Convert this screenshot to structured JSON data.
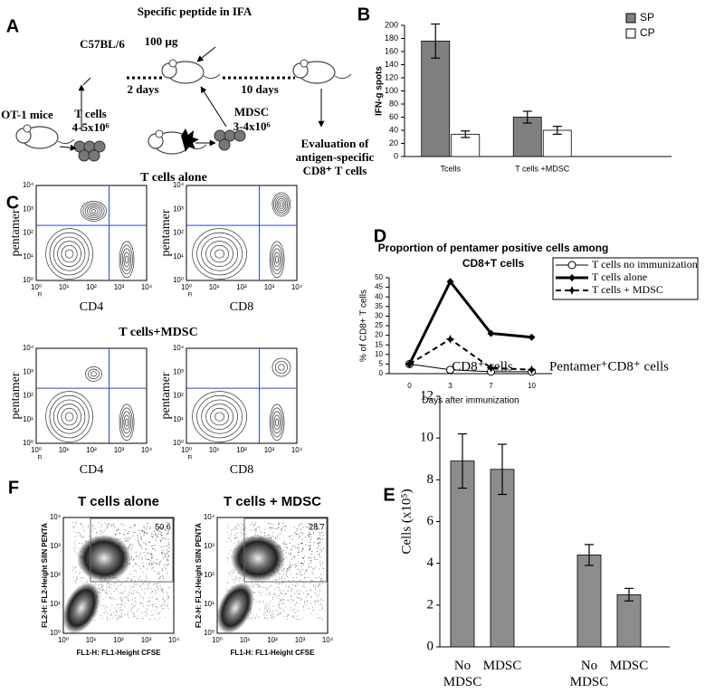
{
  "panel_letters": [
    "A",
    "B",
    "C",
    "D",
    "E",
    "F"
  ],
  "schematic": {
    "peptide": "Specific peptide in IFA",
    "dose": "100 µg",
    "strain": "C57BL/6",
    "interval_1": "2 days",
    "interval_2": "10 days",
    "donor": "OT-1 mice",
    "t_cells": "T cells",
    "t_cell_count": "4-5x10⁶",
    "mdsc": "MDSC",
    "mdsc_count": "3-4x10⁶",
    "evaluation": [
      "Evaluation of",
      "antigen-specific",
      "CD8⁺ T cells"
    ]
  },
  "flow_c": {
    "title_top": "T cells alone",
    "title_bottom": "T cells+MDSC",
    "y_label": "pentamer",
    "x_labels": [
      "CD4",
      "CD8"
    ],
    "tick_labels": [
      "10⁰",
      "10¹",
      "10²",
      "10³",
      "10⁴"
    ],
    "axis_unit": "Fl"
  },
  "flow_f": {
    "titles": [
      "T cells alone",
      "T cells + MDSC"
    ],
    "gate_values": [
      50.6,
      28.7
    ],
    "y_label": "FL2-H: FL2-Height SIIN PENTA",
    "x_label": "FL1-H: FL1-Height CFSE",
    "tick_labels": [
      "10⁰",
      "10¹",
      "10²",
      "10³",
      "10⁴"
    ]
  },
  "chart_data": [
    {
      "type": "bar",
      "y_label": "IFN-g spots",
      "categories": [
        "Tcells",
        "T cells +MDSC"
      ],
      "series": [
        {
          "name": "SP",
          "color": "#808080",
          "values": [
            176,
            60
          ],
          "errors": [
            26,
            9
          ]
        },
        {
          "name": "CP",
          "color": "#ffffff",
          "values": [
            34,
            40
          ],
          "errors": [
            5,
            6
          ]
        }
      ],
      "ylim": [
        0,
        200
      ],
      "yticks": [
        0,
        20,
        40,
        60,
        80,
        100,
        120,
        140,
        160,
        180,
        200
      ],
      "legend": "top-right",
      "grid": false
    },
    {
      "type": "line",
      "title": [
        "Proportion of pentamer positive cells among",
        "CD8+T cells"
      ],
      "y_label": "% of CD8+ T cells",
      "x_label": "Days after immunization",
      "categories": [
        "0",
        "3",
        "7",
        "10"
      ],
      "series": [
        {
          "name": "T cells no immunization",
          "color": "#000000",
          "values": [
            5,
            2,
            1,
            1
          ],
          "line_style": "solid",
          "line_width": 1,
          "marker": "open-circle"
        },
        {
          "name": "T cells alone",
          "color": "#000000",
          "values": [
            5,
            48,
            21,
            19
          ],
          "line_style": "solid",
          "line_width": 3,
          "marker": "diamond"
        },
        {
          "name": "T cells + MDSC",
          "color": "#000000",
          "values": [
            5,
            18,
            3,
            2
          ],
          "line_style": "dashed",
          "line_width": 2,
          "marker": "star"
        }
      ],
      "ylim": [
        0,
        50
      ],
      "yticks": [
        0,
        5,
        10,
        15,
        20,
        25,
        30,
        35,
        40,
        45,
        50
      ],
      "legend": "right",
      "grid": false
    },
    {
      "type": "bar",
      "y_label": "Cells (x10⁵)",
      "group_labels": [
        "CD8⁺ cells",
        "Pentamer⁺CD8⁺ cells"
      ],
      "categories": [
        "No MDSC",
        "MDSC",
        "No MDSC",
        "MDSC"
      ],
      "series": [
        {
          "color": "#8c8c8c",
          "values": [
            8.9,
            8.5,
            4.4,
            2.5
          ],
          "errors": [
            1.3,
            1.2,
            0.5,
            0.3
          ]
        }
      ],
      "ylim": [
        0,
        12
      ],
      "yticks": [
        0,
        2,
        4,
        6,
        8,
        10,
        12
      ],
      "grid": false
    }
  ]
}
